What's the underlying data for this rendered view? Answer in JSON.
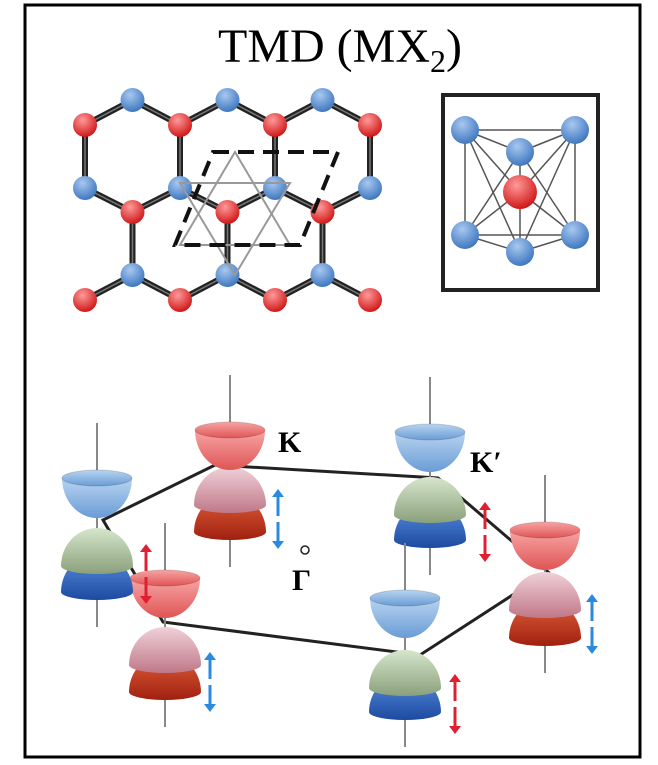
{
  "title": {
    "main": "TMD (MX",
    "subscript": "2",
    "close": ")"
  },
  "labels": {
    "k": "K",
    "k_prime": "K′",
    "gamma": "Γ"
  }
}
